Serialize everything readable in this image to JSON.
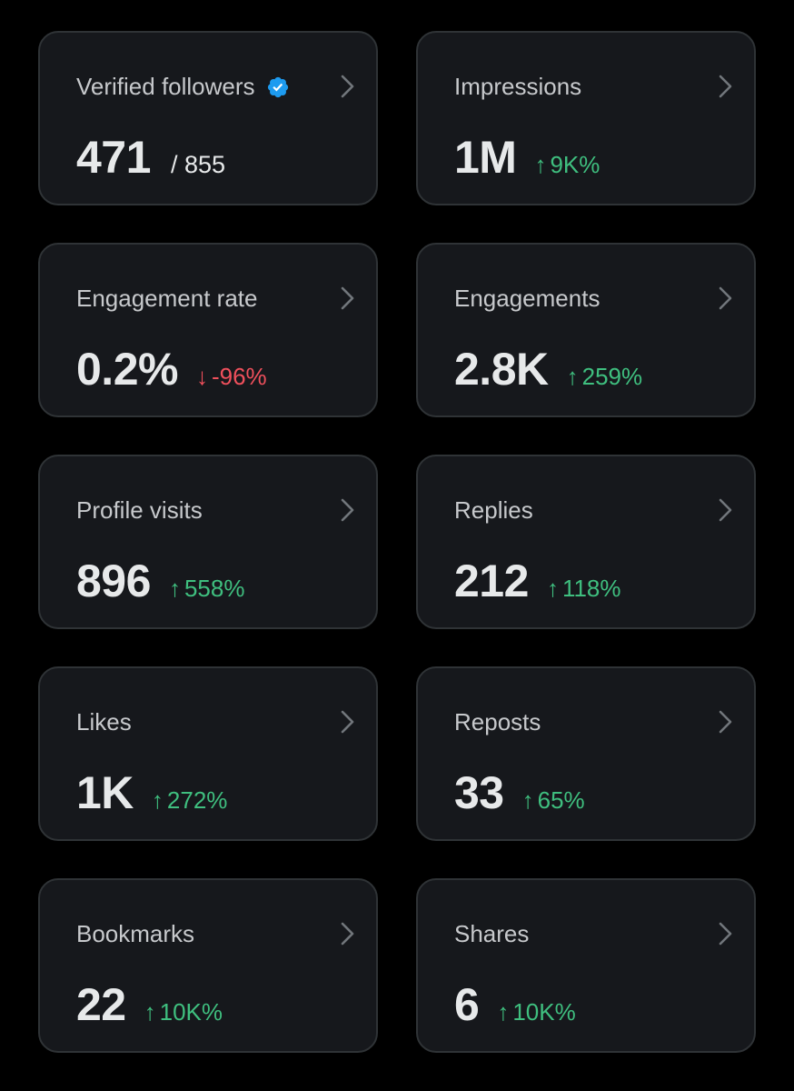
{
  "colors": {
    "background": "#000000",
    "card_background": "#16181c",
    "card_border": "#2f3336",
    "label": "#c7c9cc",
    "value": "#e7e9ea",
    "positive": "#3fbf7f",
    "negative": "#f0505c",
    "verified_badge": "#1d9bf0"
  },
  "cards": [
    {
      "label": "Verified followers",
      "value": "471",
      "total": "/ 855",
      "verified": true,
      "icon": "verified-badge-icon"
    },
    {
      "label": "Impressions",
      "value": "1M",
      "change": "9K%",
      "direction": "up",
      "arrow": "↑"
    },
    {
      "label": "Engagement rate",
      "value": "0.2%",
      "change": "-96%",
      "direction": "down",
      "arrow": "↓"
    },
    {
      "label": "Engagements",
      "value": "2.8K",
      "change": "259%",
      "direction": "up",
      "arrow": "↑"
    },
    {
      "label": "Profile visits",
      "value": "896",
      "change": "558%",
      "direction": "up",
      "arrow": "↑"
    },
    {
      "label": "Replies",
      "value": "212",
      "change": "118%",
      "direction": "up",
      "arrow": "↑"
    },
    {
      "label": "Likes",
      "value": "1K",
      "change": "272%",
      "direction": "up",
      "arrow": "↑"
    },
    {
      "label": "Reposts",
      "value": "33",
      "change": "65%",
      "direction": "up",
      "arrow": "↑"
    },
    {
      "label": "Bookmarks",
      "value": "22",
      "change": "10K%",
      "direction": "up",
      "arrow": "↑"
    },
    {
      "label": "Shares",
      "value": "6",
      "change": "10K%",
      "direction": "up",
      "arrow": "↑"
    }
  ]
}
